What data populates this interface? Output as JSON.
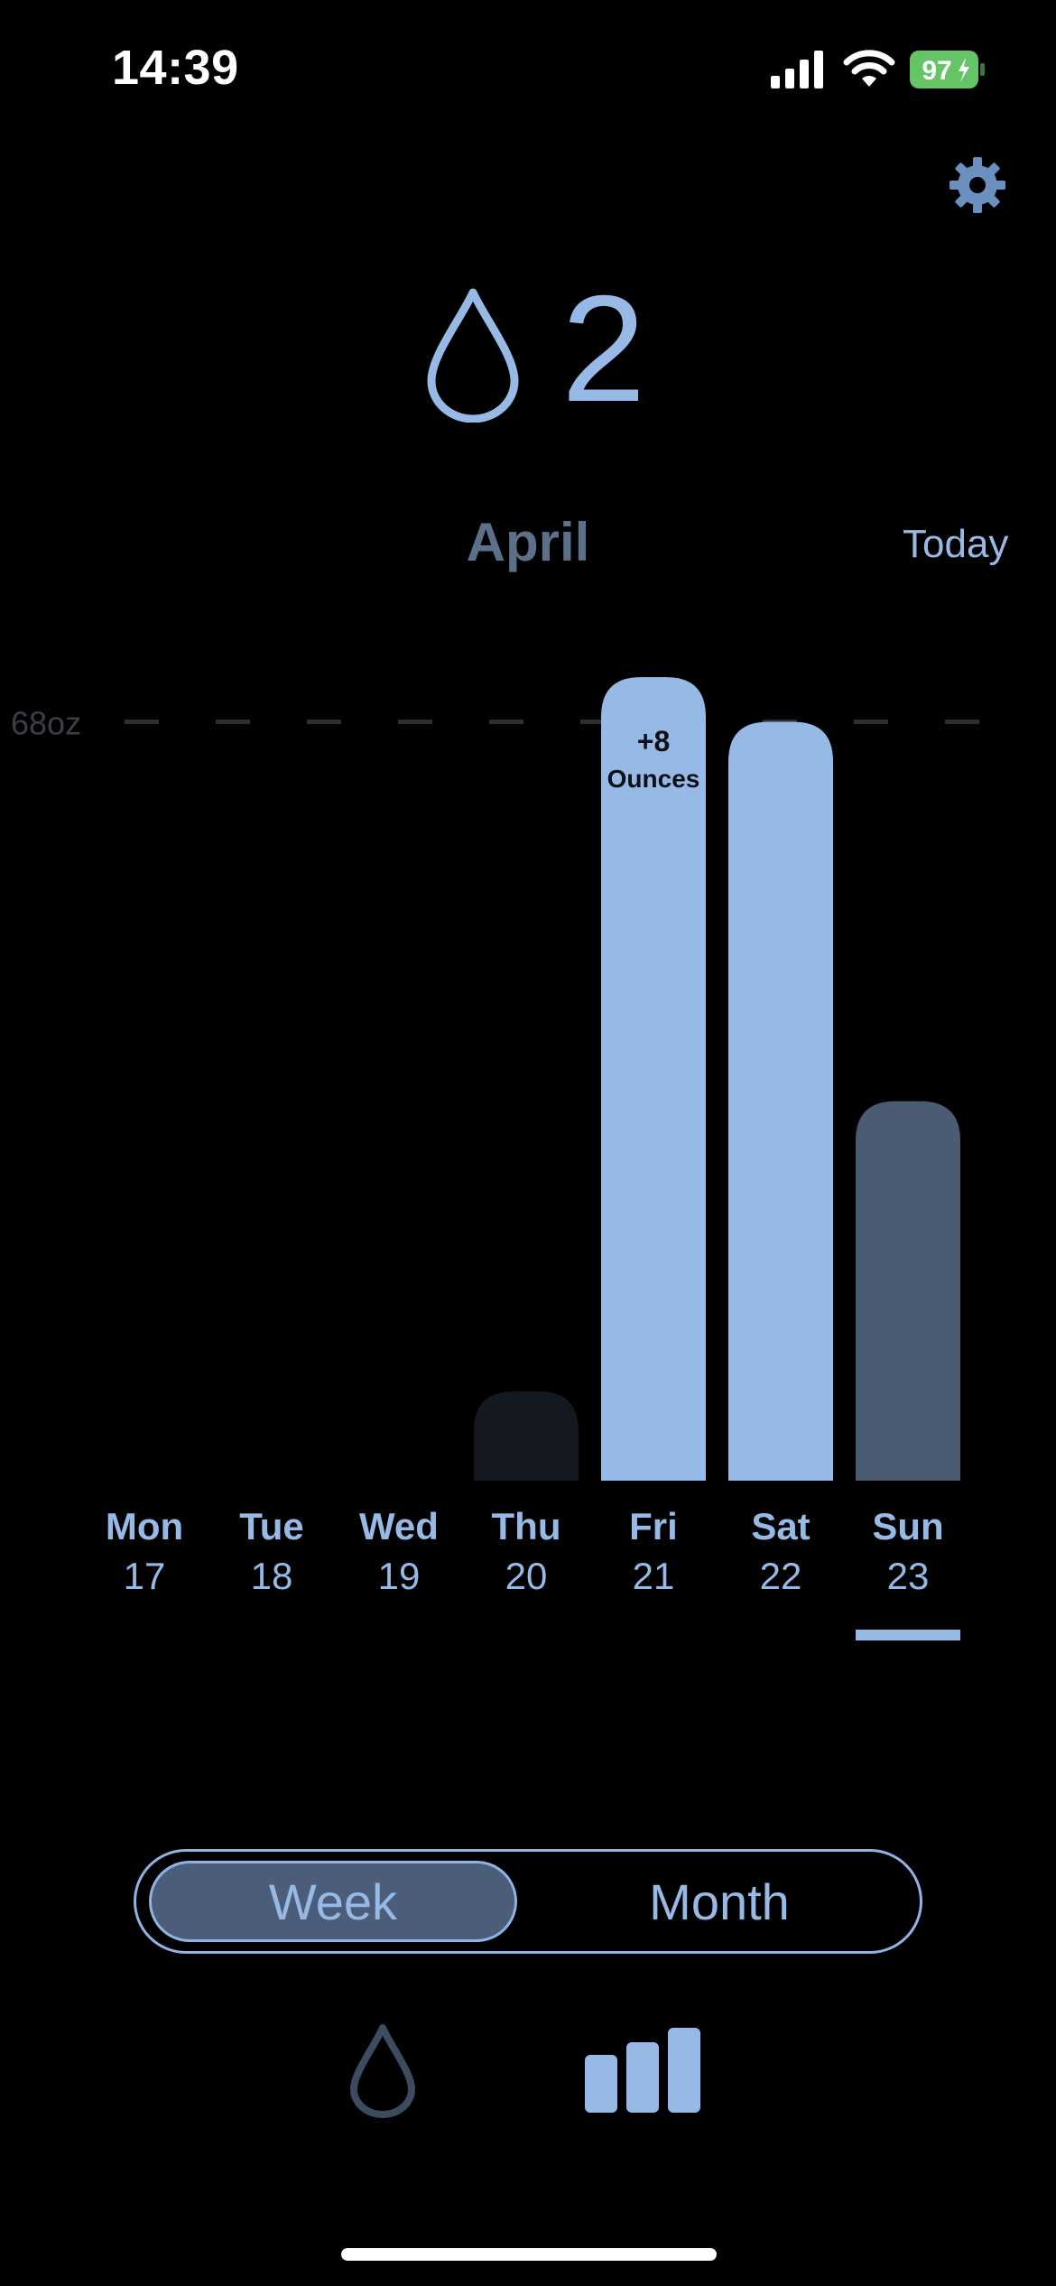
{
  "status_bar": {
    "time": "14:39",
    "battery": "97"
  },
  "header": {
    "count": "2",
    "month": "April",
    "today_label": "Today"
  },
  "chart_data": {
    "type": "bar",
    "goal_label": "68oz",
    "goal_value": 68,
    "categories": [
      "Mon",
      "Tue",
      "Wed",
      "Thu",
      "Fri",
      "Sat",
      "Sun"
    ],
    "dates": [
      "17",
      "18",
      "19",
      "20",
      "21",
      "22",
      "23"
    ],
    "values": [
      0,
      0,
      0,
      8,
      72,
      68,
      34
    ],
    "ylim": [
      0,
      72
    ],
    "selected_index": 6,
    "annotation": {
      "index": 4,
      "line1": "+8",
      "line2": "Ounces"
    },
    "colors": {
      "goal_met": "#97b9e5",
      "in_progress": "#4b5b72",
      "low": "#14181f",
      "goal_line": "#2b2f36",
      "goal_label": "#3a3f47",
      "day_label": "#97b9e5",
      "selected_indicator": "#97b9e5"
    }
  },
  "segmented": {
    "week_label": "Week",
    "month_label": "Month",
    "selected": "Week"
  },
  "tab_bar": {
    "items": [
      {
        "icon": "drop-icon",
        "active": false
      },
      {
        "icon": "bar-chart-icon",
        "active": true
      }
    ]
  },
  "colors": {
    "background": "#000000",
    "accent": "#97b9e5",
    "muted": "#5d7089"
  }
}
